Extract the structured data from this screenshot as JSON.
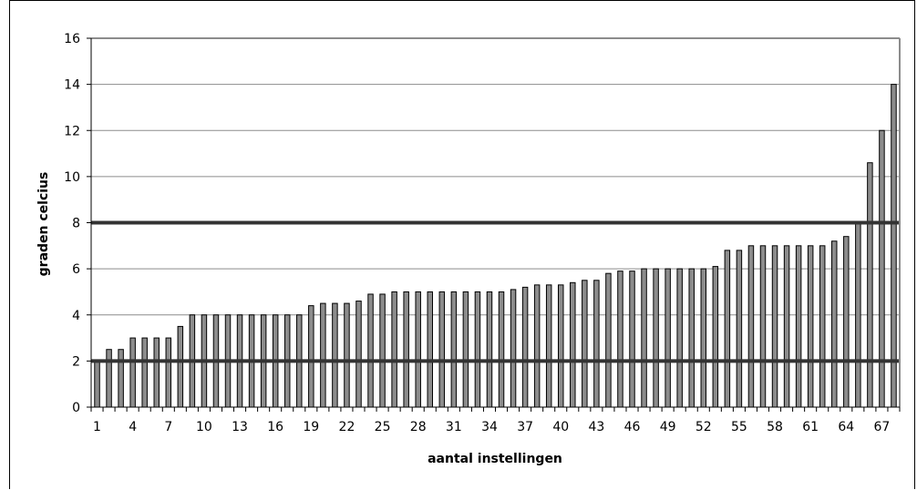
{
  "chart_data": {
    "type": "bar",
    "xlabel": "aantal instellingen",
    "ylabel": "graden celcius",
    "ylim": [
      0,
      16
    ],
    "yticks": [
      0,
      2,
      4,
      6,
      8,
      10,
      12,
      14,
      16
    ],
    "xtick_labels": [
      "1",
      "4",
      "7",
      "10",
      "13",
      "16",
      "19",
      "22",
      "25",
      "28",
      "31",
      "34",
      "37",
      "40",
      "43",
      "46",
      "49",
      "52",
      "55",
      "58",
      "61",
      "64",
      "67"
    ],
    "categories": [
      1,
      2,
      3,
      4,
      5,
      6,
      7,
      8,
      9,
      10,
      11,
      12,
      13,
      14,
      15,
      16,
      17,
      18,
      19,
      20,
      21,
      22,
      23,
      24,
      25,
      26,
      27,
      28,
      29,
      30,
      31,
      32,
      33,
      34,
      35,
      36,
      37,
      38,
      39,
      40,
      41,
      42,
      43,
      44,
      45,
      46,
      47,
      48,
      49,
      50,
      51,
      52,
      53,
      54,
      55,
      56,
      57,
      58,
      59,
      60,
      61,
      62,
      63,
      64,
      65,
      66,
      67,
      68
    ],
    "values": [
      2,
      2.5,
      2.5,
      3,
      3,
      3,
      3,
      3.5,
      4,
      4,
      4,
      4,
      4,
      4,
      4,
      4,
      4,
      4,
      4.4,
      4.5,
      4.5,
      4.5,
      4.6,
      4.9,
      4.9,
      5,
      5,
      5,
      5,
      5,
      5,
      5,
      5,
      5,
      5,
      5.1,
      5.2,
      5.3,
      5.3,
      5.3,
      5.4,
      5.5,
      5.5,
      5.8,
      5.9,
      5.9,
      6,
      6,
      6,
      6,
      6,
      6,
      6.1,
      6.8,
      6.8,
      7,
      7,
      7,
      7,
      7,
      7,
      7,
      7.2,
      7.4,
      8,
      10.6,
      12,
      14
    ],
    "reference_lines": [
      2,
      8
    ],
    "grid": true,
    "legend": "none",
    "colors": {
      "bar": "#8c8c8c",
      "bar_stroke": "#000000",
      "reference_line": "#333333",
      "grid": "#8c8c8c",
      "plot_border": "#8c8c8c"
    }
  }
}
